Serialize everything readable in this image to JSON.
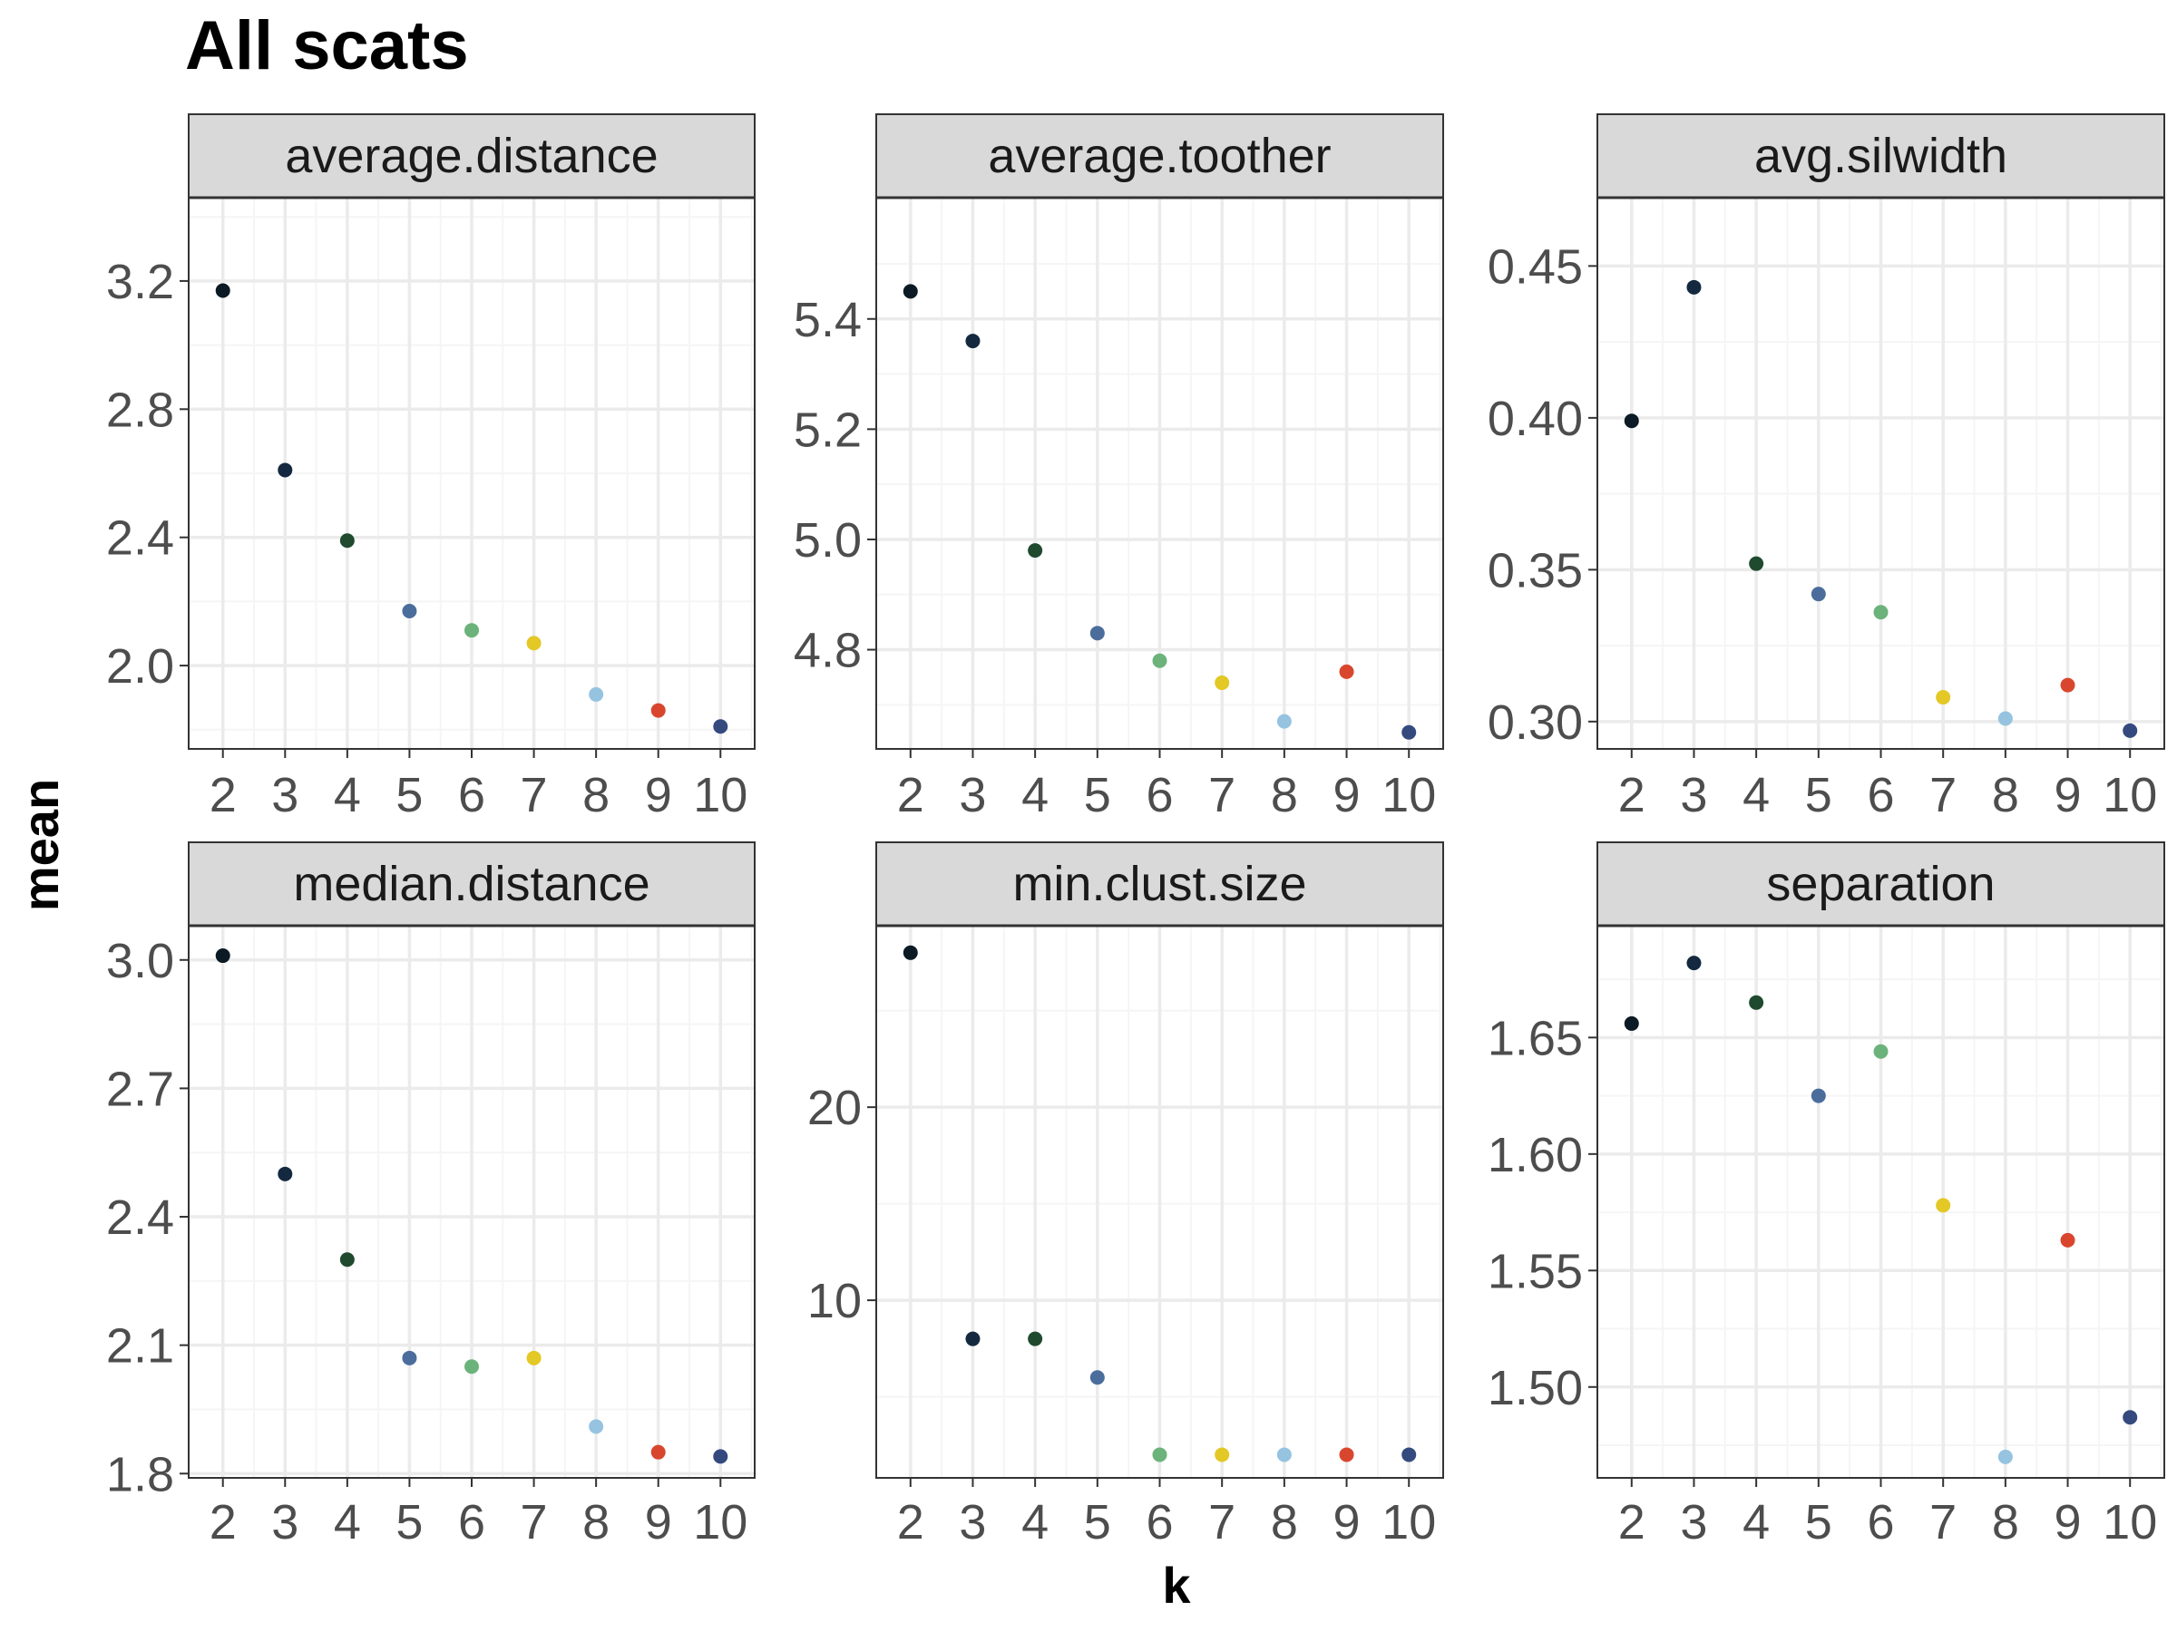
{
  "title": "All scats",
  "xlabel": "k",
  "ylabel": "mean",
  "colors": {
    "k2": "#0b1a24",
    "k3": "#14293f",
    "k4": "#1f4a2e",
    "k5": "#4a6d9c",
    "k6": "#6bb37a",
    "k7": "#e3c826",
    "k8": "#96c3e0",
    "k9": "#d9462e",
    "k10": "#344a7f",
    "strip_fill": "#d9d9d9",
    "panel_border": "#333333",
    "grid_major": "#ebebeb",
    "grid_minor": "#f5f5f5",
    "tick_text": "#4d4d4d"
  },
  "chart_data": [
    {
      "type": "scatter",
      "panel": "average.distance",
      "x": [
        2,
        3,
        4,
        5,
        6,
        7,
        8,
        9,
        10
      ],
      "y": [
        3.17,
        2.61,
        2.39,
        2.17,
        2.11,
        2.07,
        1.91,
        1.86,
        1.81
      ],
      "xticks": [
        2,
        3,
        4,
        5,
        6,
        7,
        8,
        9,
        10
      ],
      "yticks": [
        2.0,
        2.4,
        2.8,
        3.2
      ],
      "ytick_labels": [
        "2.0",
        "2.4",
        "2.8",
        "3.2"
      ],
      "xlim": [
        1.45,
        10.55
      ],
      "ylim": [
        1.74,
        3.46
      ]
    },
    {
      "type": "scatter",
      "panel": "average.toother",
      "x": [
        2,
        3,
        4,
        5,
        6,
        7,
        8,
        9,
        10
      ],
      "y": [
        5.45,
        5.36,
        4.98,
        4.83,
        4.78,
        4.74,
        4.67,
        4.76,
        4.65
      ],
      "xticks": [
        2,
        3,
        4,
        5,
        6,
        7,
        8,
        9,
        10
      ],
      "yticks": [
        4.8,
        5.0,
        5.2,
        5.4
      ],
      "ytick_labels": [
        "4.8",
        "5.0",
        "5.2",
        "5.4"
      ],
      "xlim": [
        1.45,
        10.55
      ],
      "ylim": [
        4.62,
        5.62
      ]
    },
    {
      "type": "scatter",
      "panel": "avg.silwidth",
      "x": [
        2,
        3,
        4,
        5,
        6,
        7,
        8,
        9,
        10
      ],
      "y": [
        0.399,
        0.443,
        0.352,
        0.342,
        0.336,
        0.308,
        0.301,
        0.312,
        0.297
      ],
      "xticks": [
        2,
        3,
        4,
        5,
        6,
        7,
        8,
        9,
        10
      ],
      "yticks": [
        0.3,
        0.35,
        0.4,
        0.45
      ],
      "ytick_labels": [
        "0.30",
        "0.35",
        "0.40",
        "0.45"
      ],
      "xlim": [
        1.45,
        10.55
      ],
      "ylim": [
        0.291,
        0.4725
      ]
    },
    {
      "type": "scatter",
      "panel": "median.distance",
      "x": [
        2,
        3,
        4,
        5,
        6,
        7,
        8,
        9,
        10
      ],
      "y": [
        3.01,
        2.5,
        2.3,
        2.07,
        2.05,
        2.07,
        1.91,
        1.85,
        1.84
      ],
      "xticks": [
        2,
        3,
        4,
        5,
        6,
        7,
        8,
        9,
        10
      ],
      "yticks": [
        1.8,
        2.1,
        2.4,
        2.7,
        3.0
      ],
      "ytick_labels": [
        "1.8",
        "2.1",
        "2.4",
        "2.7",
        "3.0"
      ],
      "xlim": [
        1.45,
        10.55
      ],
      "ylim": [
        1.79,
        3.08
      ]
    },
    {
      "type": "scatter",
      "panel": "min.clust.size",
      "x": [
        2,
        3,
        4,
        5,
        6,
        7,
        8,
        9,
        10
      ],
      "y": [
        28,
        8,
        8,
        6,
        2,
        2,
        2,
        2,
        2
      ],
      "xticks": [
        2,
        3,
        4,
        5,
        6,
        7,
        8,
        9,
        10
      ],
      "yticks": [
        10,
        20
      ],
      "ytick_labels": [
        "10",
        "20"
      ],
      "xlim": [
        1.45,
        10.55
      ],
      "ylim": [
        0.8,
        29.4
      ]
    },
    {
      "type": "scatter",
      "panel": "separation",
      "x": [
        2,
        3,
        4,
        5,
        6,
        7,
        8,
        9,
        10
      ],
      "y": [
        1.656,
        1.682,
        1.665,
        1.625,
        1.644,
        1.578,
        1.47,
        1.563,
        1.487
      ],
      "xticks": [
        2,
        3,
        4,
        5,
        6,
        7,
        8,
        9,
        10
      ],
      "yticks": [
        1.5,
        1.55,
        1.6,
        1.65
      ],
      "ytick_labels": [
        "1.50",
        "1.55",
        "1.60",
        "1.65"
      ],
      "xlim": [
        1.45,
        10.55
      ],
      "ylim": [
        1.461,
        1.698
      ]
    }
  ]
}
